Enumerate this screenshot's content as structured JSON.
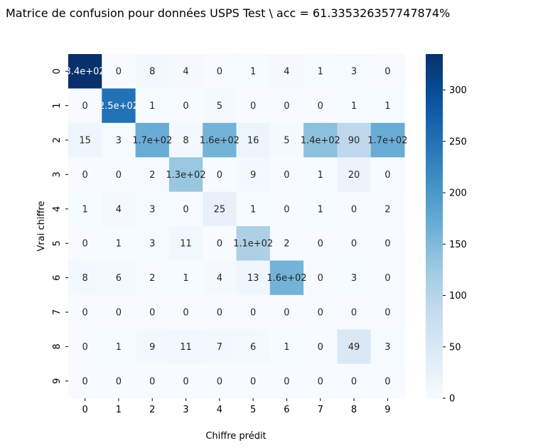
{
  "chart_data": {
    "type": "heatmap",
    "title": "Matrice de confusion pour données USPS Test \\ acc = 61.335326357747874%",
    "xlabel": "Chiffre prédit",
    "ylabel": "Vrai chiffre",
    "x_categories": [
      "0",
      "1",
      "2",
      "3",
      "4",
      "5",
      "6",
      "7",
      "8",
      "9"
    ],
    "y_categories": [
      "0",
      "1",
      "2",
      "3",
      "4",
      "5",
      "6",
      "7",
      "8",
      "9"
    ],
    "values": [
      [
        340,
        0,
        8,
        4,
        0,
        1,
        4,
        1,
        3,
        0
      ],
      [
        0,
        250,
        1,
        0,
        5,
        0,
        0,
        0,
        1,
        1
      ],
      [
        15,
        3,
        170,
        8,
        160,
        16,
        5,
        140,
        90,
        170
      ],
      [
        0,
        0,
        2,
        130,
        0,
        9,
        0,
        1,
        20,
        0
      ],
      [
        1,
        4,
        3,
        0,
        25,
        1,
        0,
        1,
        0,
        2
      ],
      [
        0,
        1,
        3,
        11,
        0,
        110,
        2,
        0,
        0,
        0
      ],
      [
        8,
        6,
        2,
        1,
        4,
        13,
        160,
        0,
        3,
        0
      ],
      [
        0,
        0,
        0,
        0,
        0,
        0,
        0,
        0,
        0,
        0
      ],
      [
        0,
        1,
        9,
        11,
        7,
        6,
        1,
        0,
        49,
        3
      ],
      [
        0,
        0,
        0,
        0,
        0,
        0,
        0,
        0,
        0,
        0
      ]
    ],
    "annotations": [
      [
        "3.4e+02",
        "0",
        "8",
        "4",
        "0",
        "1",
        "4",
        "1",
        "3",
        "0"
      ],
      [
        "0",
        "2.5e+02",
        "1",
        "0",
        "5",
        "0",
        "0",
        "0",
        "1",
        "1"
      ],
      [
        "15",
        "3",
        "1.7e+02",
        "8",
        "1.6e+02",
        "16",
        "5",
        "1.4e+02",
        "90",
        "1.7e+02"
      ],
      [
        "0",
        "0",
        "2",
        "1.3e+02",
        "0",
        "9",
        "0",
        "1",
        "20",
        "0"
      ],
      [
        "1",
        "4",
        "3",
        "0",
        "25",
        "1",
        "0",
        "1",
        "0",
        "2"
      ],
      [
        "0",
        "1",
        "3",
        "11",
        "0",
        "1.1e+02",
        "2",
        "0",
        "0",
        "0"
      ],
      [
        "8",
        "6",
        "2",
        "1",
        "4",
        "13",
        "1.6e+02",
        "0",
        "3",
        "0"
      ],
      [
        "0",
        "0",
        "0",
        "0",
        "0",
        "0",
        "0",
        "0",
        "0",
        "0"
      ],
      [
        "0",
        "1",
        "9",
        "11",
        "7",
        "6",
        "1",
        "0",
        "49",
        "3"
      ],
      [
        "0",
        "0",
        "0",
        "0",
        "0",
        "0",
        "0",
        "0",
        "0",
        "0"
      ]
    ],
    "colormap": [
      "#f7fbff",
      "#deebf7",
      "#c6dbef",
      "#9ecae1",
      "#6baed6",
      "#4292c6",
      "#2171b5",
      "#08519c",
      "#08306b"
    ],
    "colorbar": {
      "range": [
        0,
        335
      ],
      "ticks": [
        "0",
        "50",
        "100",
        "150",
        "200",
        "250",
        "300"
      ],
      "tick_values": [
        0,
        50,
        100,
        150,
        200,
        250,
        300
      ]
    }
  }
}
